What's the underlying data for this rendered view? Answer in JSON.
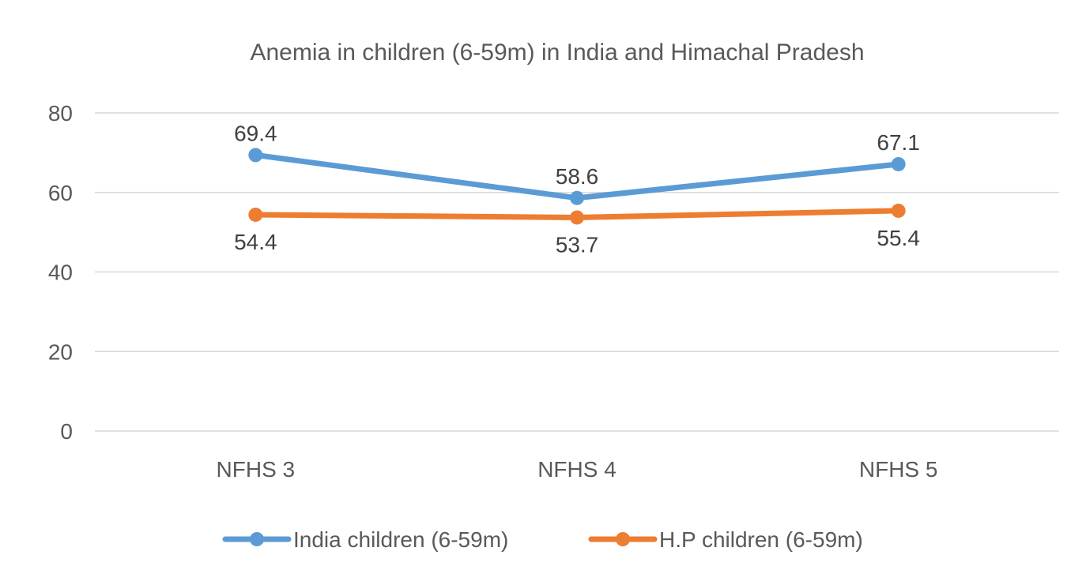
{
  "chart_data": {
    "type": "line",
    "title": "Anemia in children (6-59m) in India and Himachal Pradesh",
    "xlabel": "",
    "ylabel": "",
    "categories": [
      "NFHS 3",
      "NFHS 4",
      "NFHS 5"
    ],
    "ylim": [
      0,
      80
    ],
    "yticks": [
      0,
      20,
      40,
      60,
      80
    ],
    "grid": true,
    "legend_position": "bottom",
    "series": [
      {
        "name": "India children (6-59m)",
        "values": [
          69.4,
          58.6,
          67.1
        ],
        "color": "#5b9bd5",
        "label_position": "above"
      },
      {
        "name": "H.P children (6-59m)",
        "values": [
          54.4,
          53.7,
          55.4
        ],
        "color": "#ed7d31",
        "label_position": "below"
      }
    ]
  }
}
